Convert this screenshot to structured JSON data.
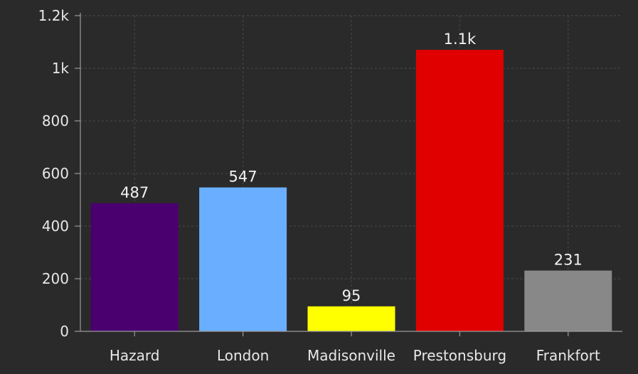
{
  "chart_data": {
    "type": "bar",
    "categories": [
      "Hazard",
      "London",
      "Madisonville",
      "Prestonsburg",
      "Frankfort"
    ],
    "values": [
      487,
      547,
      95,
      1070,
      231
    ],
    "data_labels": [
      "487",
      "547",
      "95",
      "1.1k",
      "231"
    ],
    "colors": [
      "#4b0070",
      "#6aaeff",
      "#ffff00",
      "#e00000",
      "#888888"
    ],
    "yticks": [
      0,
      200,
      400,
      600,
      800,
      1000,
      1200
    ],
    "ytick_labels": [
      "0",
      "200",
      "400",
      "600",
      "800",
      "1k",
      "1.2k"
    ],
    "ylim": [
      0,
      1200
    ],
    "grid": true,
    "background": "#2a2a2a",
    "axis_color": "#9a9a9a",
    "grid_color": "#4a4a4a"
  }
}
